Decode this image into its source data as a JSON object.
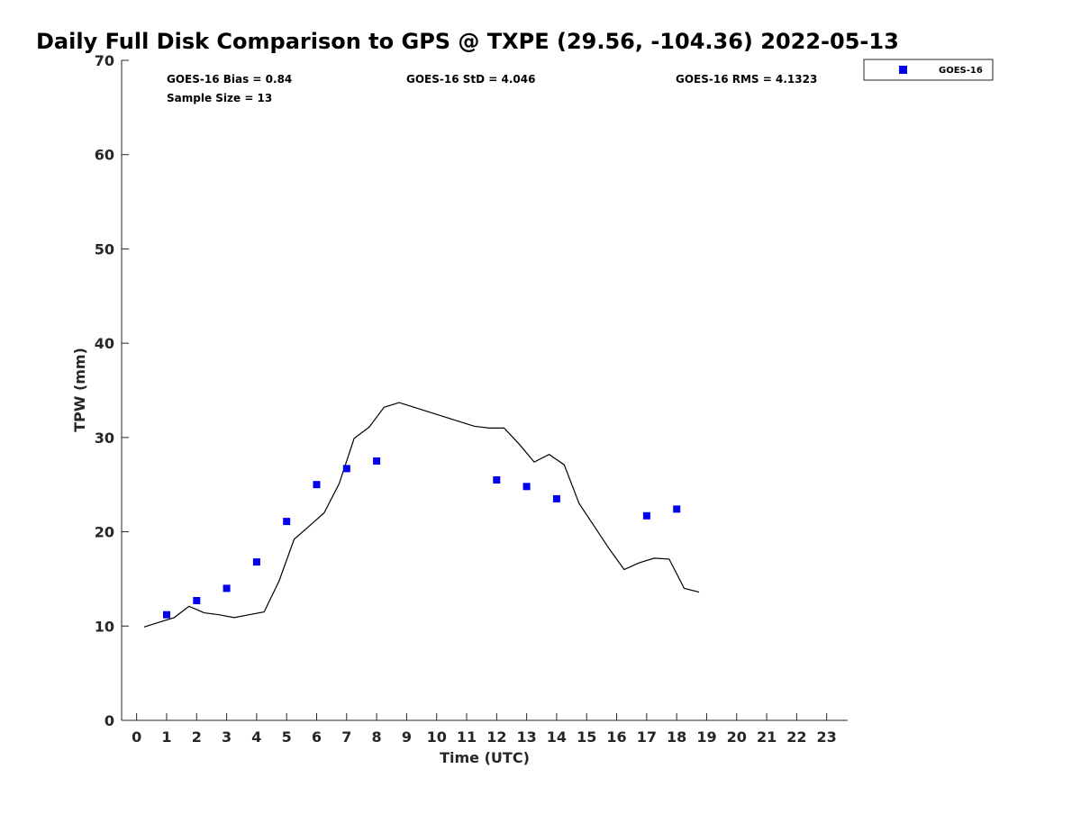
{
  "chart_data": {
    "type": "scatter",
    "title": "Daily Full Disk Comparison to GPS @ TXPE (29.56, -104.36) 2022-05-13",
    "xlabel": "Time (UTC)",
    "ylabel": "TPW (mm)",
    "xlim": [
      -0.5,
      23.7
    ],
    "ylim": [
      0,
      70
    ],
    "xticks": [
      0,
      1,
      2,
      3,
      4,
      5,
      6,
      7,
      8,
      9,
      10,
      11,
      12,
      13,
      14,
      15,
      16,
      17,
      18,
      19,
      20,
      21,
      22,
      23
    ],
    "yticks": [
      0,
      10,
      20,
      30,
      40,
      50,
      60,
      70
    ],
    "grid": false,
    "legend_position": "top-right, outside plot",
    "stats": {
      "bias": "GOES-16 Bias = 0.84",
      "std": "GOES-16 StD = 4.046",
      "rms": "GOES-16 RMS = 4.1323",
      "sample_size": "Sample Size = 13"
    },
    "series": [
      {
        "name": "GOES-16",
        "kind": "scatter",
        "marker": "square",
        "color": "#0000ee",
        "x": [
          1,
          2,
          3,
          4,
          5,
          6,
          7,
          8,
          12,
          13,
          14,
          17,
          18
        ],
        "y": [
          11.2,
          12.7,
          14.0,
          16.8,
          21.1,
          25.0,
          26.7,
          27.5,
          25.5,
          24.8,
          23.5,
          21.7,
          22.4
        ]
      },
      {
        "kind": "line",
        "color": "#000000",
        "x": [
          0.25,
          0.75,
          1.25,
          1.75,
          2.25,
          2.75,
          3.25,
          3.75,
          4.25,
          4.75,
          5.25,
          5.75,
          6.25,
          6.75,
          7.25,
          7.75,
          8.25,
          8.75,
          9.25,
          9.75,
          10.25,
          10.75,
          11.25,
          11.75,
          12.25,
          12.75,
          13.25,
          13.75,
          14.25,
          14.75,
          15.25,
          15.75,
          16.25,
          16.75,
          17.25,
          17.75,
          18.25,
          18.75
        ],
        "y": [
          9.9,
          10.4,
          10.9,
          12.1,
          11.4,
          11.2,
          10.9,
          11.2,
          11.5,
          14.8,
          19.2,
          20.6,
          22.0,
          25.1,
          29.9,
          31.1,
          33.2,
          33.7,
          33.2,
          32.7,
          32.2,
          31.7,
          31.2,
          31.0,
          31.0,
          29.3,
          27.4,
          28.2,
          27.1,
          23.0,
          20.6,
          18.2,
          16.0,
          16.7,
          17.2,
          17.1,
          14.0,
          13.6
        ]
      }
    ]
  }
}
